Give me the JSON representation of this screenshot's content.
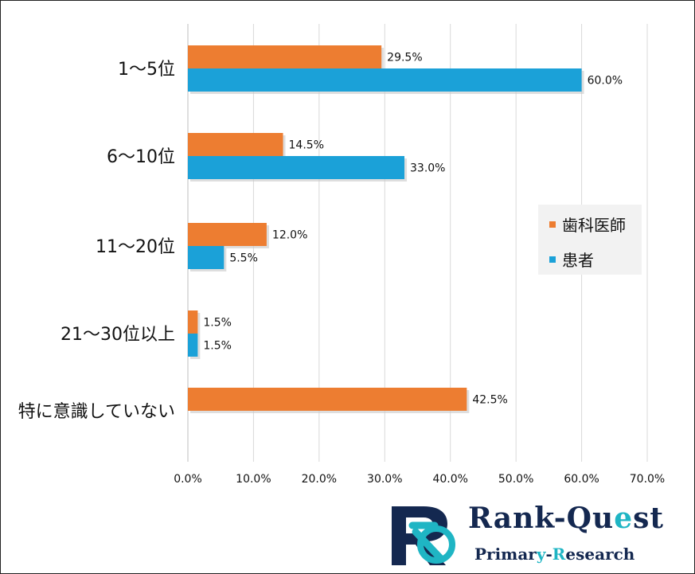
{
  "chart_data": {
    "type": "bar",
    "orientation": "horizontal",
    "categories": [
      "1～5位",
      "6～10位",
      "11～20位",
      "21～30位以上",
      "特に意識していない"
    ],
    "series": [
      {
        "name": "歯科医師",
        "color": "#ED7D31",
        "values": [
          29.5,
          14.5,
          12.0,
          1.5,
          42.5
        ]
      },
      {
        "name": "患者",
        "color": "#1BA1D8",
        "values": [
          60.0,
          33.0,
          5.5,
          1.5,
          null
        ]
      }
    ],
    "value_labels": {
      "歯科医師": [
        "29.5%",
        "14.5%",
        "12.0%",
        "1.5%",
        "42.5%"
      ],
      "患者": [
        "60.0%",
        "33.0%",
        "5.5%",
        "1.5%",
        ""
      ]
    },
    "xlim": [
      0,
      70
    ],
    "xticks": [
      "0.0%",
      "10.0%",
      "20.0%",
      "30.0%",
      "40.0%",
      "50.0%",
      "60.0%",
      "70.0%"
    ],
    "grid": true,
    "legend_position": "right"
  },
  "logo": {
    "title_main": "Rank-Qu",
    "title_accent": "e",
    "title_end": "st",
    "sub_main": "Primar",
    "sub_accent1": "y",
    "sub_mid": "-",
    "sub_accent2": "R",
    "sub_end": "esearch",
    "colors": {
      "navy": "#142850",
      "teal": "#1FB5C4"
    }
  }
}
